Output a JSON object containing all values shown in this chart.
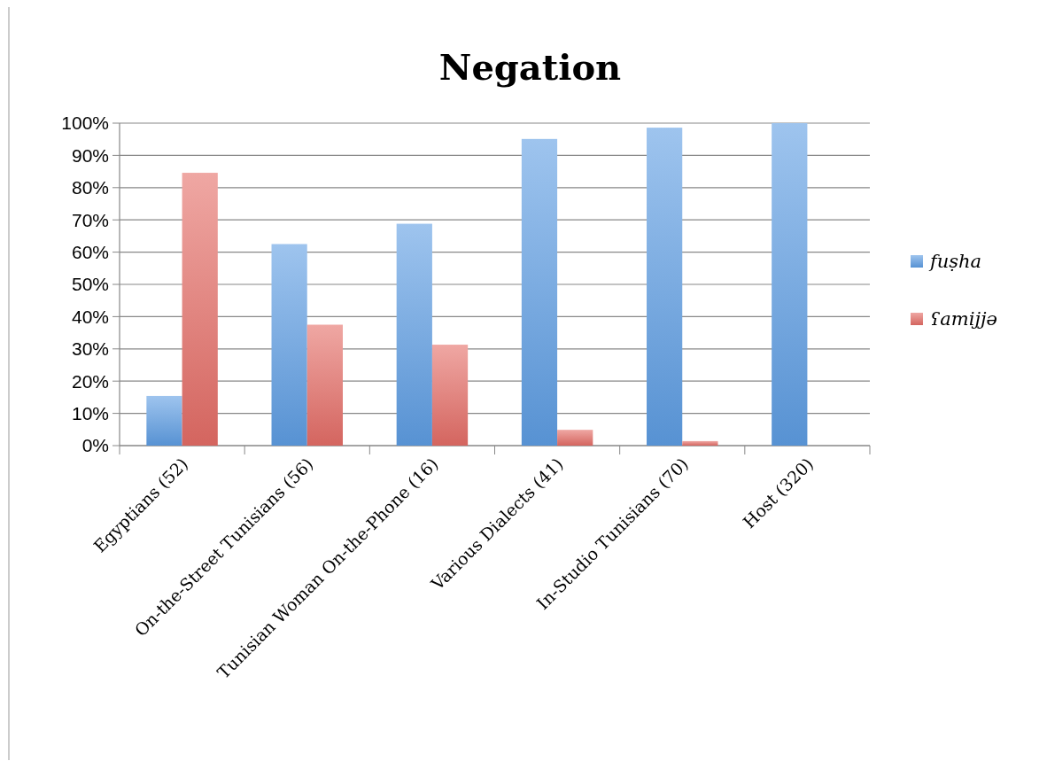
{
  "chart_data": {
    "type": "bar",
    "title": "Negation",
    "categories": [
      "Egyptians (52)",
      "On-the-Street Tunisians (56)",
      "Tunisian Woman On-the-Phone (16)",
      "Various Dialects (41)",
      "In-Studio Tunisians (70)",
      "Host (320)"
    ],
    "series": [
      {
        "name": "fuṣha",
        "color": "#5d9de3",
        "values": [
          15.4,
          62.5,
          68.8,
          95.1,
          98.6,
          100
        ]
      },
      {
        "name": "ʕamijjə",
        "color": "#e46d66",
        "values": [
          84.6,
          37.5,
          31.3,
          4.9,
          1.4,
          0
        ]
      }
    ],
    "ylim": [
      0,
      100
    ],
    "yticks": [
      {
        "value": 0,
        "label": "0%"
      },
      {
        "value": 10,
        "label": "10%"
      },
      {
        "value": 20,
        "label": "20%"
      },
      {
        "value": 30,
        "label": "30%"
      },
      {
        "value": 40,
        "label": "40%"
      },
      {
        "value": 50,
        "label": "50%"
      },
      {
        "value": 60,
        "label": "60%"
      },
      {
        "value": 70,
        "label": "70%"
      },
      {
        "value": 80,
        "label": "80%"
      },
      {
        "value": 90,
        "label": "90%"
      },
      {
        "value": 100,
        "label": "100%"
      }
    ],
    "grid": "y",
    "legend": "right"
  }
}
